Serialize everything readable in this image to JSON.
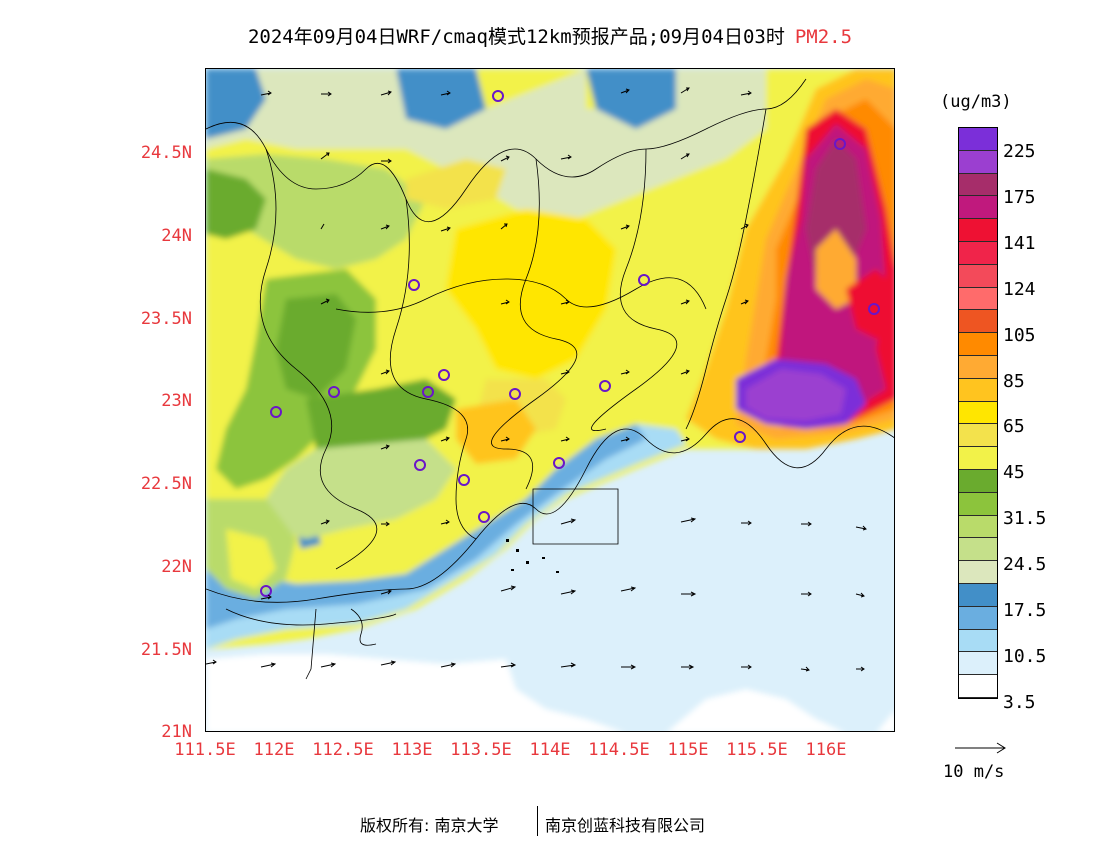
{
  "title": {
    "text": "2024年09月04日WRF/cmaq模式12km预报产品;09月04日03时",
    "pollutant": "PM2.5",
    "pollutant_color": "#e8383d"
  },
  "axes": {
    "lat_labels": [
      "24.5N",
      "24N",
      "23.5N",
      "23N",
      "22.5N",
      "22N",
      "21.5N",
      "21N"
    ],
    "lon_labels": [
      "111.5E",
      "112E",
      "112.5E",
      "113E",
      "113.5E",
      "114E",
      "114.5E",
      "115E",
      "115.5E",
      "116E"
    ],
    "label_color": "#e8383d"
  },
  "colorbar": {
    "unit": "(ug/m3)",
    "colors": [
      "#7b2fd9",
      "#9b3fd0",
      "#a62d6a",
      "#c0197d",
      "#ee1133",
      "#f0244a",
      "#f34a5a",
      "#ff6b6b",
      "#ee5522",
      "#ff8a00",
      "#ffaa33",
      "#ffc41f",
      "#ffe600",
      "#f3e24c",
      "#f2f249",
      "#6aab2e",
      "#8cc43c",
      "#b9db6a",
      "#c5e08a",
      "#dce7bd",
      "#428fc8",
      "#6aaee0",
      "#a8dcf5",
      "#dcf0fb",
      "#ffffff"
    ],
    "labels": [
      "225",
      "175",
      "141",
      "124",
      "105",
      "85",
      "65",
      "45",
      "31.5",
      "24.5",
      "17.5",
      "10.5",
      "3.5"
    ]
  },
  "wind_reference": {
    "label": "10 m/s"
  },
  "copyright": {
    "left": "版权所有: 南京大学",
    "right": "南京创蓝科技有限公司"
  }
}
